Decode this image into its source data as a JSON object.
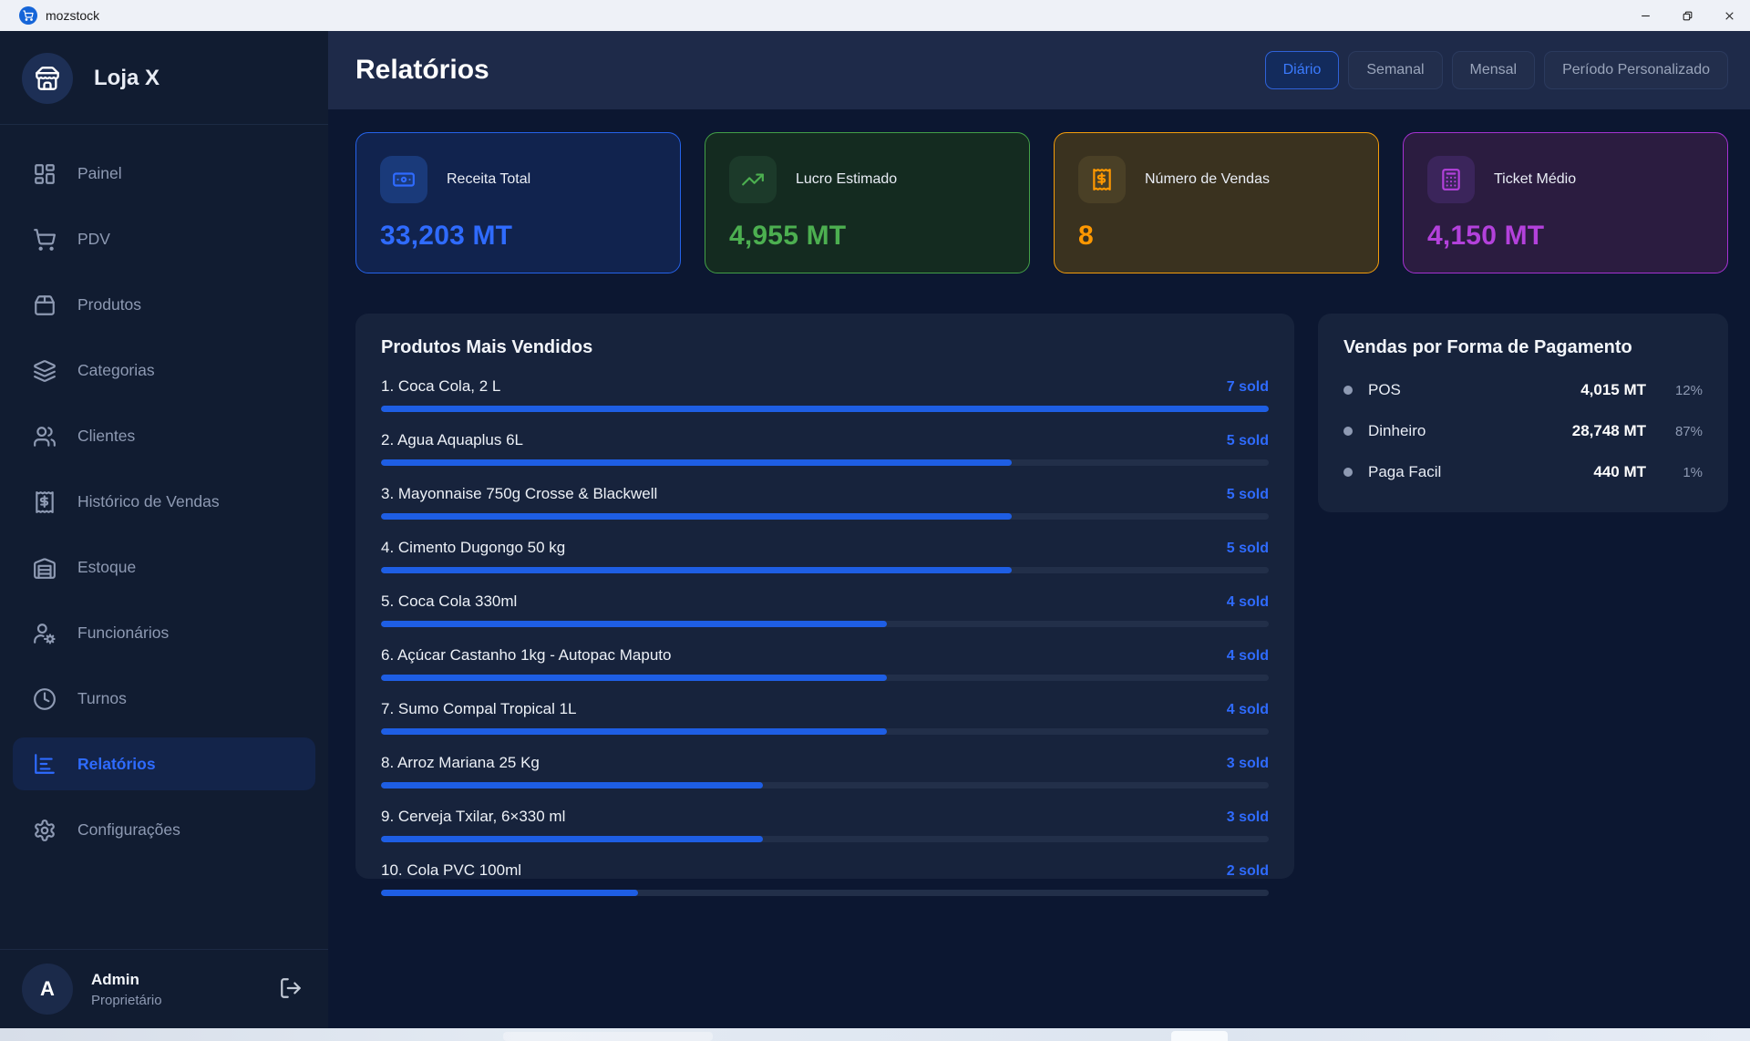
{
  "titlebar": {
    "app_name": "mozstock"
  },
  "sidebar": {
    "store_name": "Loja X",
    "items": [
      {
        "label": "Painel",
        "icon": "layout-dashboard-icon",
        "active": false
      },
      {
        "label": "PDV",
        "icon": "shopping-cart-icon",
        "active": false
      },
      {
        "label": "Produtos",
        "icon": "package-icon",
        "active": false
      },
      {
        "label": "Categorias",
        "icon": "layers-icon",
        "active": false
      },
      {
        "label": "Clientes",
        "icon": "users-icon",
        "active": false
      },
      {
        "label": "Histórico de Vendas",
        "icon": "receipt-icon",
        "active": false
      },
      {
        "label": "Estoque",
        "icon": "warehouse-icon",
        "active": false
      },
      {
        "label": "Funcionários",
        "icon": "user-cog-icon",
        "active": false
      },
      {
        "label": "Turnos",
        "icon": "clock-icon",
        "active": false
      },
      {
        "label": "Relatórios",
        "icon": "bar-chart-icon",
        "active": true
      },
      {
        "label": "Configurações",
        "icon": "gear-icon",
        "active": false
      }
    ],
    "user": {
      "initial": "A",
      "name": "Admin",
      "role": "Proprietário"
    }
  },
  "header": {
    "title": "Relatórios",
    "tabs": [
      {
        "label": "Diário",
        "active": true
      },
      {
        "label": "Semanal",
        "active": false
      },
      {
        "label": "Mensal",
        "active": false
      },
      {
        "label": "Período Personalizado",
        "active": false
      }
    ]
  },
  "stats": [
    {
      "label": "Receita Total",
      "value": "33,203 MT",
      "icon": "banknote-icon",
      "accent": "#2F6BFF",
      "border": "#2563EB",
      "bg": "#11234E",
      "tile_bg": "#1A3A7A"
    },
    {
      "label": "Lucro Estimado",
      "value": "4,955 MT",
      "icon": "trending-up-icon",
      "accent": "#4CAF50",
      "border": "#43A047",
      "bg": "#142B20",
      "tile_bg": "#1C3A2A"
    },
    {
      "label": "Número de Vendas",
      "value": "8",
      "icon": "receipt-icon",
      "accent": "#FF9800",
      "border": "#F59E0B",
      "bg": "#3A321F",
      "tile_bg": "#4A4026"
    },
    {
      "label": "Ticket Médio",
      "value": "4,150 MT",
      "icon": "calculator-icon",
      "accent": "#B341DB",
      "border": "#A632D2",
      "bg": "#2B1C40",
      "tile_bg": "#3B255B"
    }
  ],
  "top_products": {
    "title": "Produtos Mais Vendidos",
    "sold_suffix": "sold",
    "max_sold": 7,
    "items": [
      {
        "rank": 1,
        "name": "Coca Cola, 2 L",
        "sold": 7
      },
      {
        "rank": 2,
        "name": "Agua Aquaplus 6L",
        "sold": 5
      },
      {
        "rank": 3,
        "name": "Mayonnaise 750g Crosse & Blackwell",
        "sold": 5
      },
      {
        "rank": 4,
        "name": "Cimento Dugongo 50 kg",
        "sold": 5
      },
      {
        "rank": 5,
        "name": "Coca Cola 330ml",
        "sold": 4
      },
      {
        "rank": 6,
        "name": "Açúcar Castanho 1kg - Autopac Maputo",
        "sold": 4
      },
      {
        "rank": 7,
        "name": "Sumo Compal Tropical 1L",
        "sold": 4
      },
      {
        "rank": 8,
        "name": "Arroz Mariana 25 Kg",
        "sold": 3
      },
      {
        "rank": 9,
        "name": "Cerveja Txilar, 6×330 ml",
        "sold": 3
      },
      {
        "rank": 10,
        "name": "Cola PVC 100ml",
        "sold": 2
      }
    ]
  },
  "payment_methods": {
    "title": "Vendas por Forma de Pagamento",
    "rows": [
      {
        "label": "POS",
        "amount": "4,015 MT",
        "percent": "12%"
      },
      {
        "label": "Dinheiro",
        "amount": "28,748 MT",
        "percent": "87%"
      },
      {
        "label": "Paga Facil",
        "amount": "440 MT",
        "percent": "1%"
      }
    ]
  }
}
